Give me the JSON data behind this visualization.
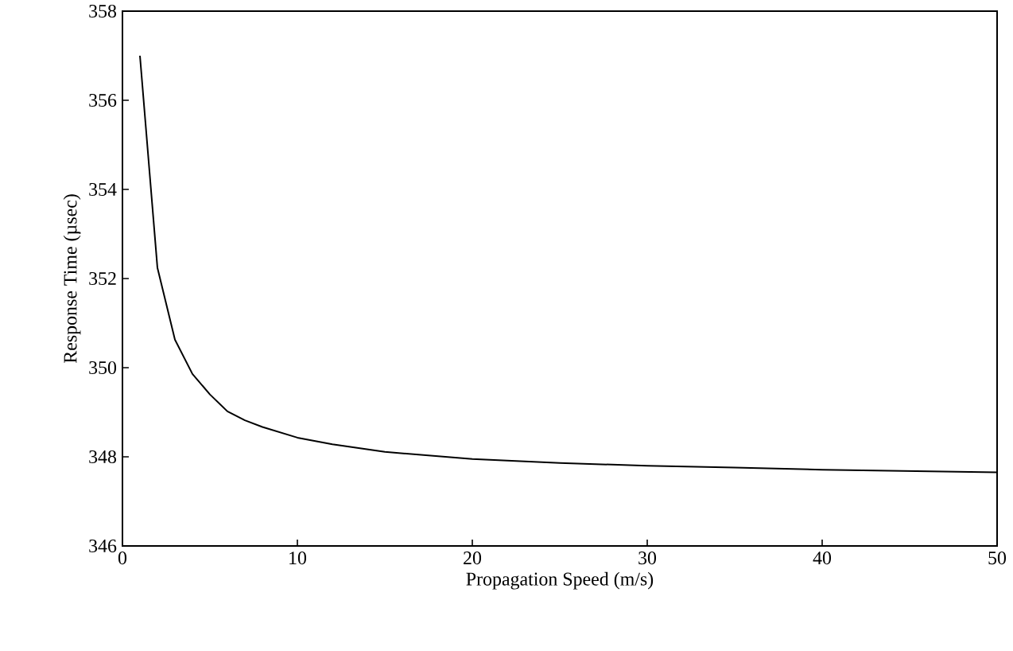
{
  "chart_data": {
    "type": "line",
    "xlabel": "Propagation Speed (m/s)",
    "ylabel": "Response Time (µsec)",
    "xlim": [
      0,
      50
    ],
    "xticks": [
      0,
      10,
      20,
      30,
      40,
      50
    ],
    "ylim": [
      346,
      358
    ],
    "yticks": [
      346,
      348,
      350,
      352,
      354,
      356,
      358
    ],
    "series": [
      {
        "color": "#000000",
        "x": [
          1,
          2,
          3,
          4,
          5,
          6,
          7,
          8,
          10,
          12,
          15,
          20,
          25,
          30,
          35,
          40,
          45,
          50
        ],
        "values": [
          357.0,
          352.24,
          350.63,
          349.86,
          349.4,
          349.02,
          348.82,
          348.67,
          348.43,
          348.28,
          348.11,
          347.95,
          347.86,
          347.8,
          347.76,
          347.71,
          347.68,
          347.65
        ]
      }
    ]
  }
}
